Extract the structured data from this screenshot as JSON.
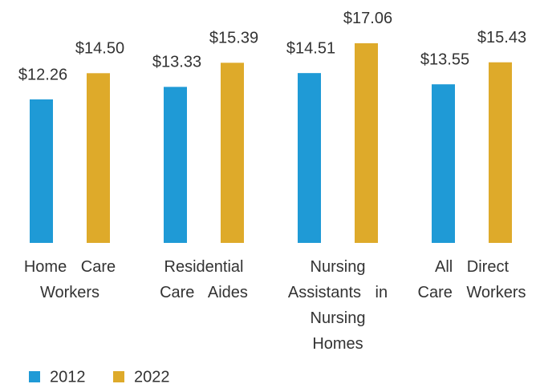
{
  "chart_data": {
    "type": "bar",
    "categories": [
      "Home Care Workers",
      "Residential Care Aides",
      "Nursing Assistants in Nursing Homes",
      "All Direct Care Workers"
    ],
    "series": [
      {
        "name": "2012",
        "color": "#1f9ad6",
        "values": [
          12.26,
          13.33,
          14.51,
          13.55
        ],
        "value_labels": [
          "$12.26",
          "$13.33",
          "$14.51",
          "$13.55"
        ]
      },
      {
        "name": "2022",
        "color": "#deaa2a",
        "values": [
          14.5,
          15.39,
          17.06,
          15.43
        ],
        "value_labels": [
          "$14.50",
          "$15.39",
          "$17.06",
          "$15.43"
        ]
      }
    ]
  }
}
